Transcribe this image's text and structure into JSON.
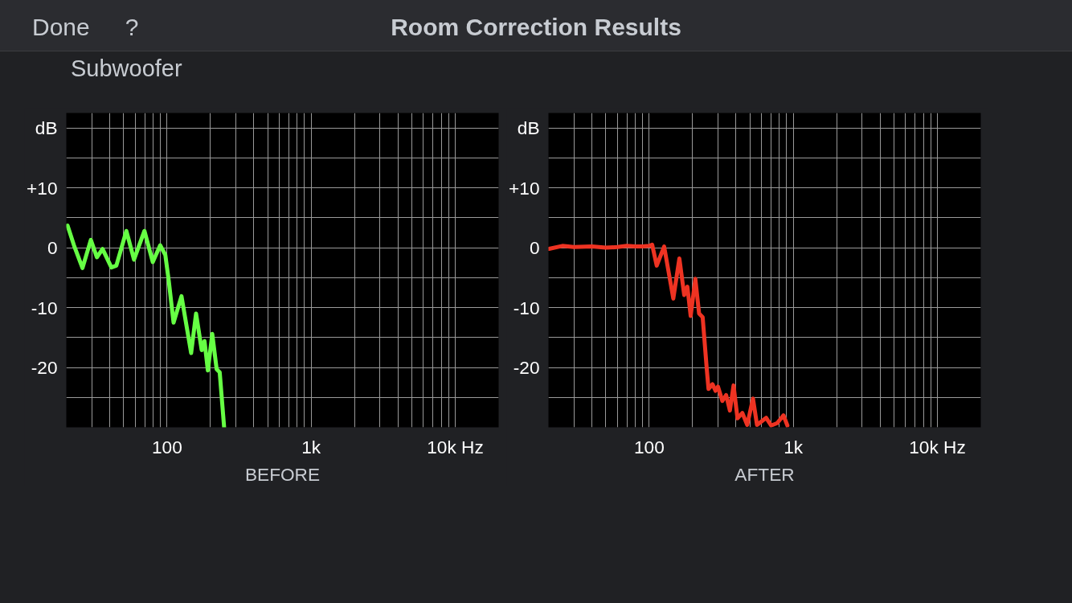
{
  "chart_data": [
    {
      "type": "line",
      "title": "Room Correction Results",
      "subtitle": "Subwoofer",
      "annotations": [
        "Done",
        "?"
      ],
      "xlabel": "BEFORE",
      "log": "x",
      "grid": true,
      "xlim": [
        20,
        20000
      ],
      "ylim": [
        -30,
        22.5
      ],
      "xticks": [
        {
          "value": 30,
          "label": null
        },
        {
          "value": 40,
          "label": null
        },
        {
          "value": 50,
          "label": null
        },
        {
          "value": 60,
          "label": null
        },
        {
          "value": 70,
          "label": null
        },
        {
          "value": 80,
          "label": null
        },
        {
          "value": 90,
          "label": null
        },
        100,
        {
          "value": 200,
          "label": null
        },
        {
          "value": 300,
          "label": null
        },
        {
          "value": 400,
          "label": null
        },
        {
          "value": 500,
          "label": null
        },
        {
          "value": 600,
          "label": null
        },
        {
          "value": 700,
          "label": null
        },
        {
          "value": 800,
          "label": null
        },
        {
          "value": 900,
          "label": null
        },
        {
          "value": 1000,
          "label": "1k"
        },
        {
          "value": 2000,
          "label": null
        },
        {
          "value": 3000,
          "label": null
        },
        {
          "value": 4000,
          "label": null
        },
        {
          "value": 5000,
          "label": null
        },
        {
          "value": 6000,
          "label": null
        },
        {
          "value": 7000,
          "label": null
        },
        {
          "value": 8000,
          "label": null
        },
        {
          "value": 9000,
          "label": null
        },
        {
          "value": 10000,
          "label": "10k Hz"
        }
      ],
      "yticks": [
        {
          "value": 20,
          "label": "dB"
        },
        {
          "value": 15,
          "label": null
        },
        {
          "value": 10,
          "label": "+10"
        },
        {
          "value": 5,
          "label": null
        },
        0,
        {
          "value": -5,
          "label": null
        },
        -10,
        {
          "value": -15,
          "label": null
        },
        -20,
        {
          "value": -25,
          "label": null
        }
      ],
      "series": [
        {
          "color": "#66ff44",
          "x": [
            20.4,
            22.6,
            25.9,
            29.6,
            32.6,
            35.7,
            41.1,
            44.5,
            52.2,
            59,
            69.7,
            79.6,
            89.7,
            97.3,
            103,
            111,
            126,
            147,
            159,
            174,
            182,
            192,
            206,
            221,
            232,
            249
          ],
          "values": [
            3.7,
            0.4,
            -3.4,
            1.3,
            -1.6,
            -0.2,
            -3.3,
            -3.0,
            2.8,
            -2.0,
            2.8,
            -2.4,
            0.4,
            -1.2,
            -5.7,
            -12.5,
            -8.1,
            -17.6,
            -11,
            -17.1,
            -15.6,
            -20.5,
            -14.4,
            -20.3,
            -20.8,
            -30
          ]
        }
      ]
    },
    {
      "type": "line",
      "xlabel": "AFTER",
      "log": "x",
      "grid": true,
      "xlim": [
        20,
        20000
      ],
      "ylim": [
        -30,
        22.5
      ],
      "xticks": [
        {
          "value": 30,
          "label": null
        },
        {
          "value": 40,
          "label": null
        },
        {
          "value": 50,
          "label": null
        },
        {
          "value": 60,
          "label": null
        },
        {
          "value": 70,
          "label": null
        },
        {
          "value": 80,
          "label": null
        },
        {
          "value": 90,
          "label": null
        },
        100,
        {
          "value": 200,
          "label": null
        },
        {
          "value": 300,
          "label": null
        },
        {
          "value": 400,
          "label": null
        },
        {
          "value": 500,
          "label": null
        },
        {
          "value": 600,
          "label": null
        },
        {
          "value": 700,
          "label": null
        },
        {
          "value": 800,
          "label": null
        },
        {
          "value": 900,
          "label": null
        },
        {
          "value": 1000,
          "label": "1k"
        },
        {
          "value": 2000,
          "label": null
        },
        {
          "value": 3000,
          "label": null
        },
        {
          "value": 4000,
          "label": null
        },
        {
          "value": 5000,
          "label": null
        },
        {
          "value": 6000,
          "label": null
        },
        {
          "value": 7000,
          "label": null
        },
        {
          "value": 8000,
          "label": null
        },
        {
          "value": 9000,
          "label": null
        },
        {
          "value": 10000,
          "label": "10k Hz"
        }
      ],
      "yticks": [
        {
          "value": 20,
          "label": "dB"
        },
        {
          "value": 15,
          "label": null
        },
        {
          "value": 10,
          "label": "+10"
        },
        {
          "value": 5,
          "label": null
        },
        0,
        {
          "value": -5,
          "label": null
        },
        -10,
        {
          "value": -15,
          "label": null
        },
        -20,
        {
          "value": -25,
          "label": null
        }
      ],
      "series": [
        {
          "color": "#ee3322",
          "x": [
            20.2,
            25,
            30,
            40,
            50,
            60,
            70,
            80,
            90,
            100,
            104.9,
            112.8,
            127,
            147,
            162,
            175,
            184,
            194,
            209,
            222,
            235,
            251,
            258,
            275,
            289,
            300,
            322,
            342,
            363,
            385,
            410,
            443,
            479,
            525,
            560,
            611,
            648,
            703,
            773,
            855,
            910
          ],
          "values": [
            -0.2,
            0.3,
            0.1,
            0.2,
            0,
            0.1,
            0.3,
            0.2,
            0.2,
            0.3,
            0.5,
            -3.0,
            0.2,
            -8.5,
            -1.8,
            -7.9,
            -6.5,
            -11.4,
            -5.2,
            -11,
            -11.6,
            -20.3,
            -23.6,
            -22.8,
            -23.9,
            -23.2,
            -25.6,
            -24.6,
            -27.2,
            -23.0,
            -28.5,
            -27.6,
            -29.6,
            -25.2,
            -29.6,
            -28.9,
            -28.4,
            -29.7,
            -29.3,
            -28,
            -29.7
          ]
        }
      ]
    }
  ]
}
